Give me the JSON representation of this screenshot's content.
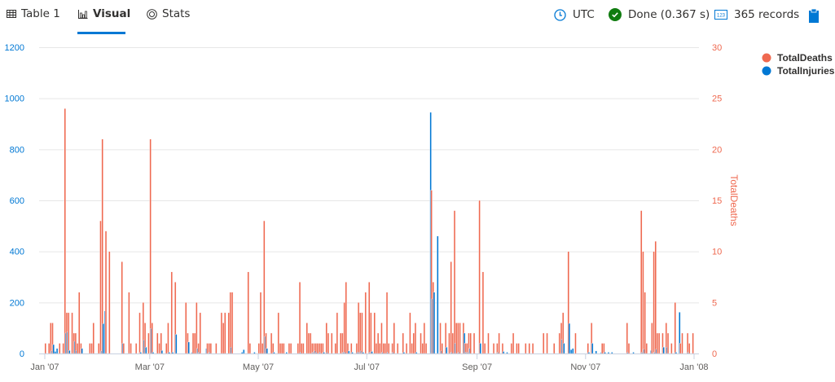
{
  "tabs": [
    {
      "label": "Table 1",
      "icon": "table-icon"
    },
    {
      "label": "Visual",
      "icon": "bar-chart-icon",
      "active": true
    },
    {
      "label": "Stats",
      "icon": "stats-icon"
    }
  ],
  "status": {
    "timezone": "UTC",
    "state": "Done (0.367 s)",
    "records": "365 records",
    "colors": {
      "done": "#107c10",
      "accent": "#0078d4"
    }
  },
  "chart_data": {
    "type": "bar",
    "xlim": [
      "2007-01-01",
      "2008-01-01"
    ],
    "x_ticks": [
      "Jan '07",
      "Mar '07",
      "May '07",
      "Jul '07",
      "Sep '07",
      "Nov '07",
      "Jan '08"
    ],
    "x_tick_dates": [
      "2007-01-01",
      "2007-03-01",
      "2007-05-01",
      "2007-07-01",
      "2007-09-01",
      "2007-11-01",
      "2008-01-01"
    ],
    "y_left": {
      "ylim": [
        0,
        1200
      ],
      "ticks": [
        "0",
        "200",
        "400",
        "600",
        "800",
        "1000",
        "1200"
      ],
      "color": "#0078d4"
    },
    "y_right": {
      "ylim": [
        0,
        30
      ],
      "ticks": [
        "0",
        "5",
        "10",
        "15",
        "20",
        "25",
        "30"
      ],
      "label": "TotalDeaths",
      "color": "#ef6950"
    },
    "grid": true,
    "legend_position": "right",
    "series": [
      {
        "name": "TotalDeaths",
        "axis": "right",
        "color": "#ef6950"
      },
      {
        "name": "TotalInjuries",
        "axis": "left",
        "color": "#0078d4"
      }
    ],
    "point_fields": [
      "date",
      "TotalDeaths",
      "TotalInjuries"
    ],
    "points": [
      [
        "2007-01-01",
        1,
        0
      ],
      [
        "2007-01-03",
        1,
        0
      ],
      [
        "2007-01-04",
        3,
        10
      ],
      [
        "2007-01-05",
        3,
        35
      ],
      [
        "2007-01-06",
        0,
        8
      ],
      [
        "2007-01-07",
        0,
        20
      ],
      [
        "2007-01-09",
        1,
        0
      ],
      [
        "2007-01-11",
        1,
        0
      ],
      [
        "2007-01-12",
        24,
        80
      ],
      [
        "2007-01-13",
        4,
        85
      ],
      [
        "2007-01-14",
        4,
        12
      ],
      [
        "2007-01-16",
        4,
        0
      ],
      [
        "2007-01-17",
        2,
        48
      ],
      [
        "2007-01-18",
        2,
        12
      ],
      [
        "2007-01-19",
        1,
        0
      ],
      [
        "2007-01-20",
        6,
        0
      ],
      [
        "2007-01-21",
        1,
        20
      ],
      [
        "2007-01-26",
        1,
        0
      ],
      [
        "2007-01-27",
        1,
        0
      ],
      [
        "2007-01-28",
        3,
        0
      ],
      [
        "2007-01-31",
        1,
        0
      ],
      [
        "2007-02-01",
        13,
        10
      ],
      [
        "2007-02-02",
        21,
        117
      ],
      [
        "2007-02-03",
        0,
        167
      ],
      [
        "2007-02-04",
        12,
        0
      ],
      [
        "2007-02-06",
        10,
        0
      ],
      [
        "2007-02-13",
        9,
        40
      ],
      [
        "2007-02-14",
        1,
        0
      ],
      [
        "2007-02-17",
        6,
        0
      ],
      [
        "2007-02-18",
        1,
        0
      ],
      [
        "2007-02-21",
        1,
        0
      ],
      [
        "2007-02-23",
        4,
        5
      ],
      [
        "2007-02-25",
        5,
        53
      ],
      [
        "2007-02-26",
        3,
        25
      ],
      [
        "2007-02-28",
        2,
        0
      ],
      [
        "2007-03-01",
        21,
        98
      ],
      [
        "2007-03-02",
        3,
        5
      ],
      [
        "2007-03-05",
        2,
        0
      ],
      [
        "2007-03-06",
        1,
        0
      ],
      [
        "2007-03-07",
        2,
        12
      ],
      [
        "2007-03-10",
        1,
        0
      ],
      [
        "2007-03-11",
        3,
        5
      ],
      [
        "2007-03-13",
        8,
        5
      ],
      [
        "2007-03-15",
        7,
        75
      ],
      [
        "2007-03-21",
        5,
        0
      ],
      [
        "2007-03-22",
        2,
        45
      ],
      [
        "2007-03-24",
        0,
        5
      ],
      [
        "2007-03-25",
        2,
        0
      ],
      [
        "2007-03-26",
        2,
        0
      ],
      [
        "2007-03-27",
        5,
        20
      ],
      [
        "2007-03-28",
        1,
        5
      ],
      [
        "2007-03-29",
        4,
        0
      ],
      [
        "2007-04-01",
        0,
        20
      ],
      [
        "2007-04-02",
        1,
        0
      ],
      [
        "2007-04-03",
        1,
        5
      ],
      [
        "2007-04-04",
        1,
        0
      ],
      [
        "2007-04-07",
        1,
        0
      ],
      [
        "2007-04-10",
        4,
        0
      ],
      [
        "2007-04-11",
        3,
        0
      ],
      [
        "2007-04-12",
        4,
        0
      ],
      [
        "2007-04-14",
        4,
        0
      ],
      [
        "2007-04-15",
        6,
        25
      ],
      [
        "2007-04-16",
        6,
        0
      ],
      [
        "2007-04-21",
        0,
        5
      ],
      [
        "2007-04-22",
        0,
        15
      ],
      [
        "2007-04-25",
        8,
        0
      ],
      [
        "2007-04-26",
        1,
        0
      ],
      [
        "2007-04-28",
        0,
        5
      ],
      [
        "2007-05-01",
        1,
        0
      ],
      [
        "2007-05-02",
        6,
        0
      ],
      [
        "2007-05-03",
        1,
        0
      ],
      [
        "2007-05-04",
        13,
        67
      ],
      [
        "2007-05-05",
        2,
        20
      ],
      [
        "2007-05-08",
        2,
        0
      ],
      [
        "2007-05-09",
        1,
        5
      ],
      [
        "2007-05-12",
        4,
        0
      ],
      [
        "2007-05-13",
        1,
        0
      ],
      [
        "2007-05-14",
        1,
        0
      ],
      [
        "2007-05-15",
        1,
        0
      ],
      [
        "2007-05-16",
        0,
        5
      ],
      [
        "2007-05-18",
        1,
        0
      ],
      [
        "2007-05-19",
        1,
        0
      ],
      [
        "2007-05-23",
        1,
        0
      ],
      [
        "2007-05-24",
        7,
        5
      ],
      [
        "2007-05-25",
        1,
        0
      ],
      [
        "2007-05-26",
        1,
        0
      ],
      [
        "2007-05-28",
        3,
        0
      ],
      [
        "2007-05-29",
        2,
        0
      ],
      [
        "2007-05-30",
        2,
        0
      ],
      [
        "2007-05-31",
        1,
        5
      ],
      [
        "2007-06-01",
        1,
        10
      ],
      [
        "2007-06-02",
        1,
        5
      ],
      [
        "2007-06-03",
        1,
        0
      ],
      [
        "2007-06-04",
        1,
        5
      ],
      [
        "2007-06-05",
        1,
        0
      ],
      [
        "2007-06-06",
        1,
        5
      ],
      [
        "2007-06-08",
        3,
        5
      ],
      [
        "2007-06-09",
        2,
        0
      ],
      [
        "2007-06-11",
        2,
        0
      ],
      [
        "2007-06-13",
        1,
        0
      ],
      [
        "2007-06-14",
        4,
        0
      ],
      [
        "2007-06-16",
        2,
        0
      ],
      [
        "2007-06-17",
        2,
        5
      ],
      [
        "2007-06-18",
        5,
        5
      ],
      [
        "2007-06-19",
        7,
        0
      ],
      [
        "2007-06-20",
        1,
        10
      ],
      [
        "2007-06-22",
        1,
        5
      ],
      [
        "2007-06-25",
        1,
        5
      ],
      [
        "2007-06-26",
        5,
        5
      ],
      [
        "2007-06-27",
        4,
        10
      ],
      [
        "2007-06-28",
        4,
        5
      ],
      [
        "2007-06-30",
        6,
        0
      ],
      [
        "2007-07-02",
        7,
        5
      ],
      [
        "2007-07-03",
        4,
        8
      ],
      [
        "2007-07-05",
        4,
        0
      ],
      [
        "2007-07-06",
        1,
        0
      ],
      [
        "2007-07-07",
        2,
        0
      ],
      [
        "2007-07-08",
        1,
        0
      ],
      [
        "2007-07-09",
        3,
        5
      ],
      [
        "2007-07-10",
        1,
        0
      ],
      [
        "2007-07-11",
        1,
        0
      ],
      [
        "2007-07-12",
        6,
        5
      ],
      [
        "2007-07-13",
        1,
        0
      ],
      [
        "2007-07-15",
        1,
        5
      ],
      [
        "2007-07-16",
        3,
        0
      ],
      [
        "2007-07-18",
        1,
        0
      ],
      [
        "2007-07-21",
        2,
        5
      ],
      [
        "2007-07-23",
        1,
        0
      ],
      [
        "2007-07-25",
        4,
        0
      ],
      [
        "2007-07-26",
        1,
        0
      ],
      [
        "2007-07-27",
        2,
        0
      ],
      [
        "2007-07-28",
        3,
        5
      ],
      [
        "2007-07-31",
        2,
        0
      ],
      [
        "2007-08-01",
        1,
        0
      ],
      [
        "2007-08-02",
        3,
        0
      ],
      [
        "2007-08-03",
        1,
        0
      ],
      [
        "2007-08-05",
        0,
        945
      ],
      [
        "2007-08-06",
        16,
        214
      ],
      [
        "2007-08-07",
        7,
        240
      ],
      [
        "2007-08-09",
        0,
        460
      ],
      [
        "2007-08-11",
        3,
        10
      ],
      [
        "2007-08-12",
        1,
        0
      ],
      [
        "2007-08-14",
        3,
        25
      ],
      [
        "2007-08-16",
        2,
        0
      ],
      [
        "2007-08-17",
        9,
        5
      ],
      [
        "2007-08-18",
        2,
        0
      ],
      [
        "2007-08-19",
        14,
        40
      ],
      [
        "2007-08-20",
        3,
        0
      ],
      [
        "2007-08-21",
        3,
        5
      ],
      [
        "2007-08-22",
        3,
        0
      ],
      [
        "2007-08-24",
        3,
        80
      ],
      [
        "2007-08-25",
        1,
        5
      ],
      [
        "2007-08-26",
        1,
        5
      ],
      [
        "2007-08-27",
        2,
        20
      ],
      [
        "2007-08-28",
        2,
        0
      ],
      [
        "2007-08-30",
        2,
        0
      ],
      [
        "2007-09-02",
        15,
        40
      ],
      [
        "2007-09-04",
        8,
        0
      ],
      [
        "2007-09-05",
        1,
        0
      ],
      [
        "2007-09-07",
        2,
        0
      ],
      [
        "2007-09-10",
        1,
        0
      ],
      [
        "2007-09-12",
        1,
        5
      ],
      [
        "2007-09-13",
        2,
        0
      ],
      [
        "2007-09-15",
        1,
        8
      ],
      [
        "2007-09-17",
        0,
        5
      ],
      [
        "2007-09-20",
        1,
        0
      ],
      [
        "2007-09-21",
        2,
        0
      ],
      [
        "2007-09-23",
        1,
        0
      ],
      [
        "2007-09-24",
        1,
        0
      ],
      [
        "2007-09-28",
        1,
        0
      ],
      [
        "2007-09-30",
        1,
        0
      ],
      [
        "2007-10-02",
        1,
        0
      ],
      [
        "2007-10-08",
        2,
        0
      ],
      [
        "2007-10-10",
        2,
        0
      ],
      [
        "2007-10-14",
        1,
        0
      ],
      [
        "2007-10-17",
        2,
        0
      ],
      [
        "2007-10-18",
        3,
        55
      ],
      [
        "2007-10-19",
        4,
        40
      ],
      [
        "2007-10-22",
        10,
        118
      ],
      [
        "2007-10-23",
        0,
        15
      ],
      [
        "2007-10-24",
        0,
        20
      ],
      [
        "2007-10-26",
        2,
        0
      ],
      [
        "2007-11-02",
        1,
        5
      ],
      [
        "2007-11-04",
        3,
        40
      ],
      [
        "2007-11-06",
        0,
        10
      ],
      [
        "2007-11-09",
        0,
        5
      ],
      [
        "2007-11-10",
        1,
        0
      ],
      [
        "2007-11-11",
        1,
        5
      ],
      [
        "2007-11-13",
        0,
        5
      ],
      [
        "2007-11-15",
        0,
        5
      ],
      [
        "2007-11-24",
        3,
        5
      ],
      [
        "2007-11-25",
        1,
        0
      ],
      [
        "2007-11-27",
        0,
        5
      ],
      [
        "2007-12-02",
        14,
        5
      ],
      [
        "2007-12-03",
        10,
        17
      ],
      [
        "2007-12-04",
        6,
        0
      ],
      [
        "2007-12-05",
        1,
        0
      ],
      [
        "2007-12-07",
        0,
        12
      ],
      [
        "2007-12-08",
        3,
        0
      ],
      [
        "2007-12-09",
        10,
        5
      ],
      [
        "2007-12-10",
        11,
        17
      ],
      [
        "2007-12-11",
        2,
        0
      ],
      [
        "2007-12-12",
        2,
        0
      ],
      [
        "2007-12-14",
        2,
        25
      ],
      [
        "2007-12-16",
        3,
        25
      ],
      [
        "2007-12-17",
        2,
        0
      ],
      [
        "2007-12-19",
        1,
        0
      ],
      [
        "2007-12-21",
        5,
        5
      ],
      [
        "2007-12-23",
        0,
        162
      ],
      [
        "2007-12-24",
        1,
        0
      ],
      [
        "2007-12-25",
        2,
        0
      ],
      [
        "2007-12-28",
        2,
        5
      ],
      [
        "2007-12-29",
        1,
        0
      ],
      [
        "2007-12-31",
        2,
        0
      ]
    ]
  }
}
